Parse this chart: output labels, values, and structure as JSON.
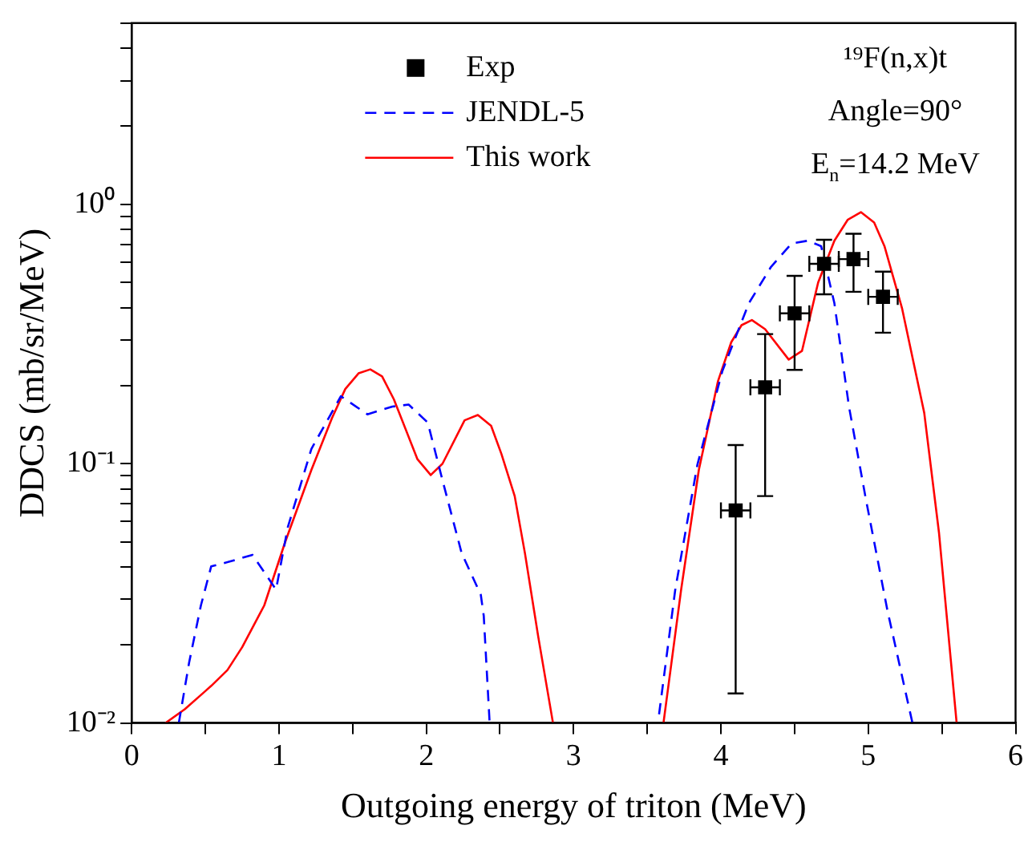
{
  "chart_data": {
    "type": "line",
    "xlabel": "Outgoing energy of triton (MeV)",
    "ylabel": "DDCS (mb/sr/MeV)",
    "log": "y",
    "grid": false,
    "legend": "top",
    "xlim": [
      0,
      6
    ],
    "xticks": [
      0,
      {
        "value": 0.5,
        "label": null
      },
      1,
      {
        "value": 1.5,
        "label": null
      },
      2,
      {
        "value": 2.5,
        "label": null
      },
      3,
      {
        "value": 3.5,
        "label": null
      },
      4,
      {
        "value": 4.5,
        "label": null
      },
      5,
      {
        "value": 5.5,
        "label": null
      },
      6
    ],
    "ylim": [
      0.01,
      5
    ],
    "yticks": [
      {
        "value": 0.01,
        "label": "10⁻²"
      },
      {
        "value": 0.02,
        "label": null
      },
      {
        "value": 0.03,
        "label": null
      },
      {
        "value": 0.04,
        "label": null
      },
      {
        "value": 0.05,
        "label": null
      },
      {
        "value": 0.06,
        "label": null
      },
      {
        "value": 0.07,
        "label": null
      },
      {
        "value": 0.08,
        "label": null
      },
      {
        "value": 0.09,
        "label": null
      },
      {
        "value": 0.1,
        "label": "10⁻¹"
      },
      {
        "value": 0.2,
        "label": null
      },
      {
        "value": 0.3,
        "label": null
      },
      {
        "value": 0.4,
        "label": null
      },
      {
        "value": 0.5,
        "label": null
      },
      {
        "value": 0.6,
        "label": null
      },
      {
        "value": 0.7,
        "label": null
      },
      {
        "value": 0.8,
        "label": null
      },
      {
        "value": 0.9,
        "label": null
      },
      {
        "value": 1,
        "label": "10⁰"
      },
      {
        "value": 2,
        "label": null
      },
      {
        "value": 3,
        "label": null
      },
      {
        "value": 4,
        "label": null
      },
      {
        "value": 5,
        "label": null
      }
    ],
    "annotations": [
      "¹⁹F(n,x)t",
      "Angle=90°",
      "E$_{n}$=14.2 MeV"
    ],
    "series": [
      {
        "name": "Exp",
        "type": "scatter",
        "marker": "square",
        "color": "#000000",
        "x": [
          4.1,
          4.3,
          4.5,
          4.7,
          4.9,
          5.1
        ],
        "values": [
          0.066,
          0.197,
          0.38,
          0.59,
          0.615,
          0.44
        ],
        "errors": [
          [
            0.013,
            0.118
          ],
          [
            0.075,
            0.316
          ],
          [
            0.23,
            0.53
          ],
          [
            0.45,
            0.73
          ],
          [
            0.46,
            0.77
          ],
          [
            0.32,
            0.55
          ]
        ],
        "xerrors": [
          0.1,
          0.1,
          0.1,
          0.1,
          0.1,
          0.1
        ]
      },
      {
        "name": "JENDL-5",
        "type": "line",
        "line_style": "dashed",
        "marker": "none",
        "color": "#0000ff",
        "x": [
          0.32,
          0.39,
          0.47,
          0.54,
          0.65,
          0.82,
          0.98,
          1.06,
          1.22,
          1.42,
          1.6,
          1.77,
          1.88,
          2.01,
          2.11,
          2.24,
          2.37,
          2.39,
          2.43,
          3.0,
          3.58,
          3.69,
          3.84,
          4.01,
          4.19,
          4.34,
          4.48,
          4.59,
          4.68,
          4.77,
          4.87,
          4.98,
          5.13,
          5.3
        ],
        "values": [
          0.01,
          0.0171,
          0.0284,
          0.0402,
          0.0417,
          0.0445,
          0.0327,
          0.0569,
          0.114,
          0.182,
          0.155,
          0.166,
          0.169,
          0.144,
          0.0863,
          0.0452,
          0.0312,
          0.0259,
          0.01,
          null,
          0.0108,
          0.0327,
          0.099,
          0.228,
          0.416,
          0.574,
          0.707,
          0.724,
          0.69,
          0.416,
          0.165,
          0.075,
          0.0272,
          0.01
        ]
      },
      {
        "name": "This work",
        "type": "line",
        "line_style": "solid",
        "marker": "none",
        "color": "#ff0000",
        "x": [
          0.23,
          0.36,
          0.54,
          0.65,
          0.75,
          0.9,
          1.04,
          1.22,
          1.36,
          1.45,
          1.54,
          1.62,
          1.7,
          1.78,
          1.94,
          2.03,
          2.11,
          2.26,
          2.35,
          2.44,
          2.51,
          2.6,
          2.67,
          2.76,
          2.86,
          3.2,
          3.61,
          3.73,
          3.85,
          3.98,
          4.07,
          4.14,
          4.21,
          4.3,
          4.46,
          4.55,
          4.66,
          4.77,
          4.86,
          4.95,
          5.04,
          5.11,
          5.23,
          5.38,
          5.48,
          5.6
        ],
        "values": [
          0.01,
          0.0113,
          0.0139,
          0.016,
          0.0196,
          0.0284,
          0.0495,
          0.0946,
          0.15,
          0.194,
          0.223,
          0.231,
          0.217,
          0.177,
          0.104,
          0.0904,
          0.1,
          0.147,
          0.154,
          0.14,
          0.109,
          0.075,
          0.045,
          0.0215,
          0.01,
          null,
          0.01,
          0.0327,
          0.0946,
          0.208,
          0.294,
          0.342,
          0.358,
          0.33,
          0.252,
          0.272,
          0.5,
          0.724,
          0.871,
          0.933,
          0.851,
          0.69,
          0.396,
          0.157,
          0.0543,
          0.01
        ]
      }
    ]
  }
}
